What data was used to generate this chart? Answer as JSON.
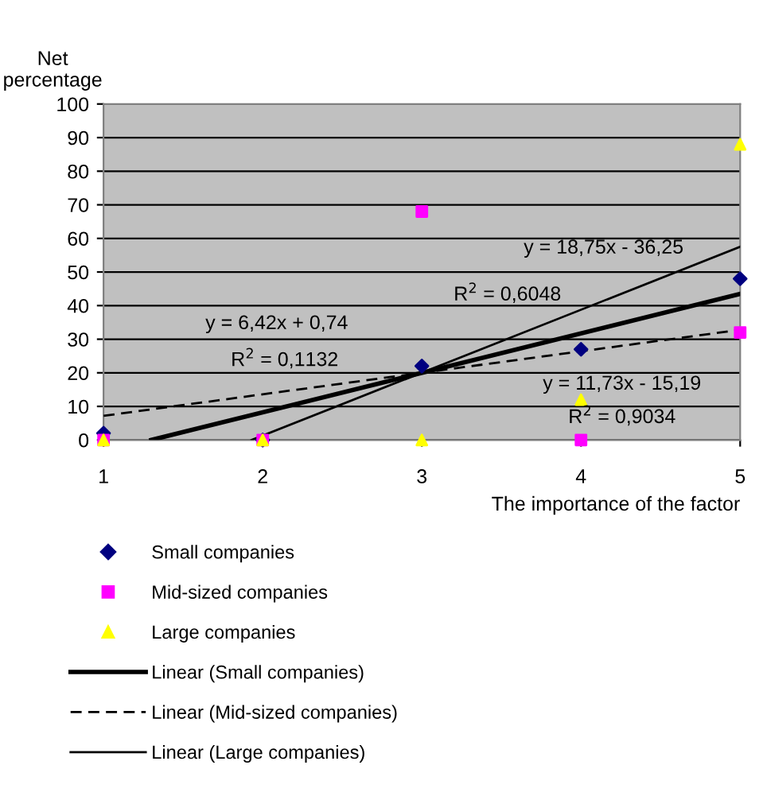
{
  "chart_data": {
    "type": "scatter",
    "xlabel": "The importance of the factor",
    "ylabel": "Net\npercentage",
    "xlim": [
      1,
      5
    ],
    "xticks": [
      1,
      2,
      3,
      4,
      5
    ],
    "ylim": [
      0,
      100
    ],
    "yticks": [
      0,
      10,
      20,
      30,
      40,
      50,
      60,
      70,
      80,
      90,
      100
    ],
    "grid": "y",
    "legend": "bottom",
    "series": [
      {
        "name": "Small companies",
        "marker": "diamond",
        "color": "#000080",
        "x": [
          1,
          2,
          3,
          4,
          5
        ],
        "values": [
          2,
          0,
          22,
          27,
          48
        ]
      },
      {
        "name": "Mid-sized companies",
        "marker": "square",
        "color": "#ff00ff",
        "x": [
          1,
          2,
          3,
          4,
          5
        ],
        "values": [
          0,
          0,
          68,
          0,
          32
        ]
      },
      {
        "name": "Large companies",
        "marker": "triangle",
        "color": "#ffff00",
        "x": [
          1,
          2,
          3,
          4,
          5
        ],
        "values": [
          0,
          0,
          0,
          12,
          88
        ]
      },
      {
        "name": "Linear (Small companies)",
        "type": "line",
        "line_style": "solid",
        "color": "#000000",
        "x": [
          1.3,
          5
        ],
        "values": [
          0,
          43.5
        ]
      },
      {
        "name": "Linear (Mid-sized companies)",
        "type": "line",
        "line_style": "dashed",
        "color": "#000000",
        "x": [
          1,
          5
        ],
        "values": [
          7.2,
          32.8
        ]
      },
      {
        "name": "Linear (Large companies)",
        "type": "line",
        "line_style": "solid",
        "color": "#000000",
        "x": [
          1.93,
          5
        ],
        "values": [
          0,
          57.5
        ]
      }
    ],
    "annotations": [
      "y = 18,75x - 36,25",
      "R$^{2}$ = 0,6048",
      "y = 6,42x + 0,74",
      "R$^{2}$ = 0,1132",
      "y = 11,73x - 15,19",
      "R$^{2}$ = 0,9034"
    ]
  }
}
